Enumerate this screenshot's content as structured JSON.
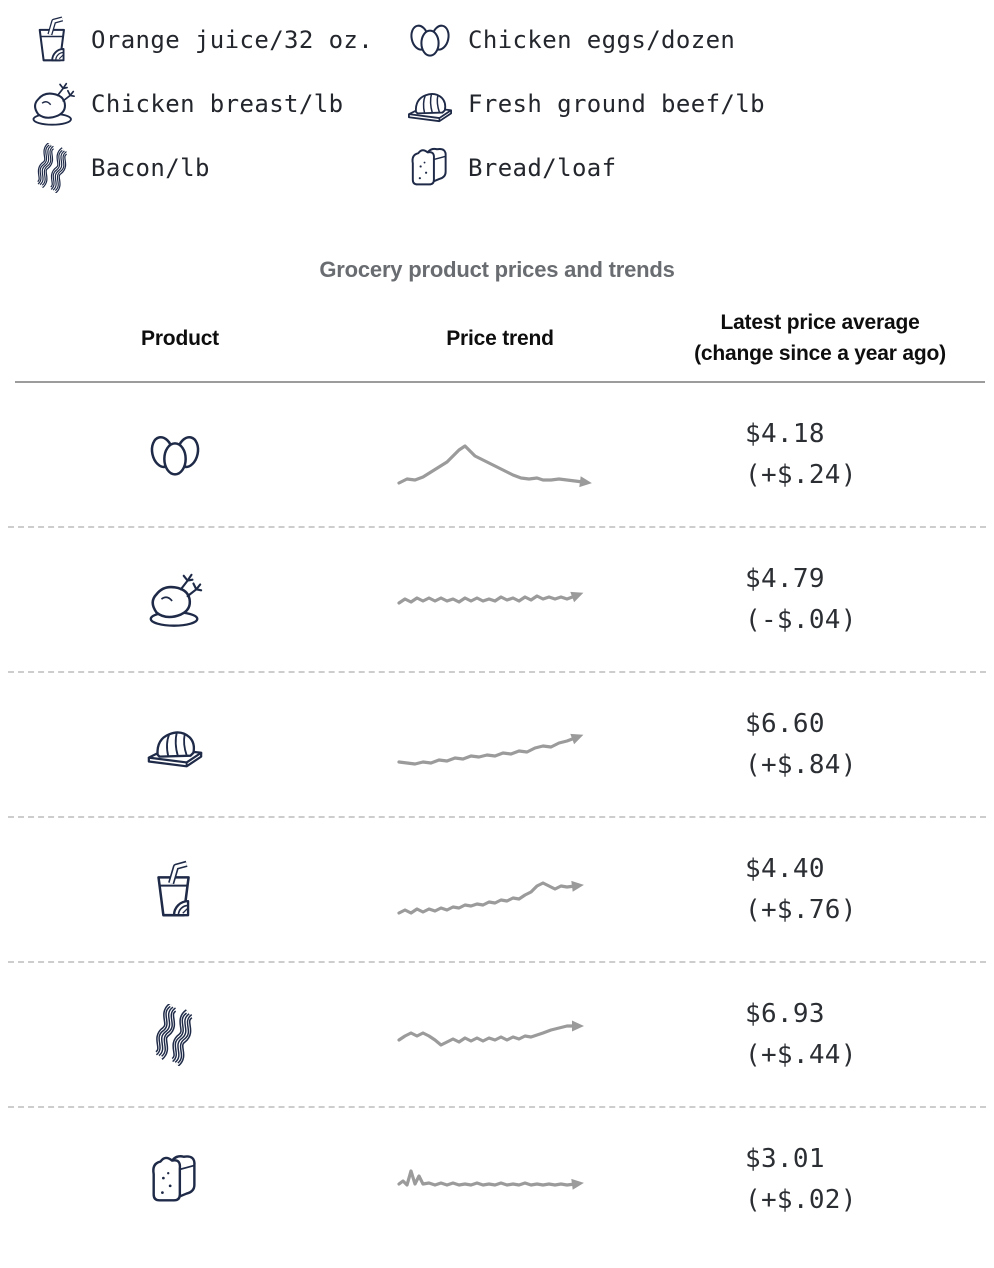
{
  "colors": {
    "icon_ink": "#1e2a47",
    "legend_text": "#23262c",
    "price_text": "#2b2e33",
    "title_gray": "#696c70",
    "header_black": "#0e0e0e",
    "trend": "#9b9b9b",
    "solid_rule": "#9c9c9c",
    "dashed_rule": "#cdcdcd",
    "background": "#ffffff"
  },
  "legend": {
    "items": [
      {
        "icon": "juice-icon",
        "label": "Orange juice/32 oz."
      },
      {
        "icon": "eggs-icon",
        "label": "Chicken eggs/dozen"
      },
      {
        "icon": "chicken-icon",
        "label": "Chicken breast/lb"
      },
      {
        "icon": "beef-icon",
        "label": "Fresh ground beef/lb"
      },
      {
        "icon": "bacon-icon",
        "label": "Bacon/lb"
      },
      {
        "icon": "bread-icon",
        "label": "Bread/loaf"
      }
    ]
  },
  "table": {
    "title": "Grocery product prices and trends",
    "columns": [
      {
        "label": "Product"
      },
      {
        "label": "Price trend"
      },
      {
        "label_line1": "Latest price average",
        "label_line2": "(change since a year ago)"
      }
    ],
    "rows": [
      {
        "product": "Chicken eggs/dozen",
        "icon": "eggs-icon",
        "price": "$4.18",
        "change": "(+$.24)",
        "trend_points": [
          [
            4,
            63
          ],
          [
            12,
            59
          ],
          [
            20,
            60
          ],
          [
            28,
            57
          ],
          [
            36,
            52
          ],
          [
            44,
            47
          ],
          [
            52,
            42
          ],
          [
            58,
            36
          ],
          [
            64,
            30
          ],
          [
            70,
            26
          ],
          [
            74,
            30
          ],
          [
            80,
            36
          ],
          [
            86,
            39
          ],
          [
            94,
            43
          ],
          [
            102,
            47
          ],
          [
            110,
            51
          ],
          [
            118,
            55
          ],
          [
            126,
            58
          ],
          [
            134,
            59
          ],
          [
            142,
            58
          ],
          [
            148,
            60
          ],
          [
            156,
            60
          ],
          [
            164,
            59
          ],
          [
            172,
            60
          ],
          [
            180,
            61
          ],
          [
            188,
            62
          ]
        ]
      },
      {
        "product": "Chicken breast/lb",
        "icon": "chicken-icon",
        "price": "$4.79",
        "change": "(-$.04)",
        "trend_points": [
          [
            4,
            38
          ],
          [
            10,
            34
          ],
          [
            16,
            37
          ],
          [
            22,
            33
          ],
          [
            28,
            36
          ],
          [
            34,
            33
          ],
          [
            40,
            36
          ],
          [
            46,
            33
          ],
          [
            52,
            36
          ],
          [
            58,
            34
          ],
          [
            64,
            37
          ],
          [
            70,
            33
          ],
          [
            76,
            36
          ],
          [
            82,
            33
          ],
          [
            88,
            36
          ],
          [
            94,
            34
          ],
          [
            100,
            36
          ],
          [
            106,
            32
          ],
          [
            112,
            35
          ],
          [
            118,
            33
          ],
          [
            124,
            36
          ],
          [
            130,
            32
          ],
          [
            136,
            35
          ],
          [
            142,
            31
          ],
          [
            148,
            34
          ],
          [
            154,
            32
          ],
          [
            160,
            34
          ],
          [
            166,
            32
          ],
          [
            172,
            34
          ],
          [
            180,
            31
          ]
        ]
      },
      {
        "product": "Fresh ground beef/lb",
        "icon": "beef-icon",
        "price": "$6.60",
        "change": "(+$.84)",
        "trend_points": [
          [
            4,
            52
          ],
          [
            12,
            53
          ],
          [
            20,
            54
          ],
          [
            28,
            52
          ],
          [
            36,
            53
          ],
          [
            44,
            50
          ],
          [
            52,
            51
          ],
          [
            60,
            48
          ],
          [
            68,
            49
          ],
          [
            76,
            46
          ],
          [
            84,
            47
          ],
          [
            92,
            45
          ],
          [
            100,
            46
          ],
          [
            108,
            43
          ],
          [
            116,
            44
          ],
          [
            124,
            41
          ],
          [
            132,
            42
          ],
          [
            140,
            38
          ],
          [
            148,
            36
          ],
          [
            156,
            37
          ],
          [
            164,
            33
          ],
          [
            172,
            31
          ],
          [
            180,
            28
          ]
        ]
      },
      {
        "product": "Orange juice/32 oz.",
        "icon": "juice-icon",
        "price": "$4.40",
        "change": "(+$.76)",
        "trend_points": [
          [
            4,
            58
          ],
          [
            10,
            55
          ],
          [
            16,
            58
          ],
          [
            22,
            54
          ],
          [
            28,
            57
          ],
          [
            34,
            54
          ],
          [
            40,
            56
          ],
          [
            46,
            53
          ],
          [
            52,
            55
          ],
          [
            58,
            52
          ],
          [
            64,
            53
          ],
          [
            70,
            50
          ],
          [
            76,
            51
          ],
          [
            82,
            49
          ],
          [
            88,
            50
          ],
          [
            94,
            47
          ],
          [
            100,
            48
          ],
          [
            106,
            45
          ],
          [
            112,
            46
          ],
          [
            118,
            43
          ],
          [
            124,
            44
          ],
          [
            130,
            40
          ],
          [
            136,
            37
          ],
          [
            142,
            31
          ],
          [
            148,
            28
          ],
          [
            154,
            31
          ],
          [
            160,
            34
          ],
          [
            166,
            31
          ],
          [
            172,
            32
          ],
          [
            180,
            31
          ]
        ]
      },
      {
        "product": "Bacon/lb",
        "icon": "bacon-icon",
        "price": "$6.93",
        "change": "(+$.44)",
        "trend_points": [
          [
            4,
            40
          ],
          [
            10,
            36
          ],
          [
            16,
            33
          ],
          [
            22,
            36
          ],
          [
            28,
            33
          ],
          [
            34,
            36
          ],
          [
            40,
            40
          ],
          [
            46,
            45
          ],
          [
            52,
            42
          ],
          [
            58,
            39
          ],
          [
            64,
            42
          ],
          [
            70,
            38
          ],
          [
            76,
            41
          ],
          [
            82,
            38
          ],
          [
            88,
            41
          ],
          [
            94,
            38
          ],
          [
            100,
            40
          ],
          [
            106,
            37
          ],
          [
            112,
            40
          ],
          [
            118,
            37
          ],
          [
            124,
            39
          ],
          [
            130,
            36
          ],
          [
            136,
            37
          ],
          [
            142,
            35
          ],
          [
            148,
            33
          ],
          [
            156,
            30
          ],
          [
            164,
            28
          ],
          [
            172,
            26
          ],
          [
            180,
            26
          ]
        ]
      },
      {
        "product": "Bread/loaf",
        "icon": "bread-icon",
        "price": "$3.01",
        "change": "(+$.02)",
        "trend_points": [
          [
            4,
            39
          ],
          [
            8,
            36
          ],
          [
            12,
            40
          ],
          [
            16,
            26
          ],
          [
            20,
            39
          ],
          [
            24,
            31
          ],
          [
            28,
            39
          ],
          [
            34,
            38
          ],
          [
            40,
            40
          ],
          [
            46,
            38
          ],
          [
            52,
            40
          ],
          [
            58,
            38
          ],
          [
            64,
            40
          ],
          [
            70,
            39
          ],
          [
            76,
            40
          ],
          [
            82,
            38
          ],
          [
            88,
            40
          ],
          [
            94,
            39
          ],
          [
            100,
            40
          ],
          [
            106,
            38
          ],
          [
            112,
            40
          ],
          [
            118,
            39
          ],
          [
            124,
            40
          ],
          [
            130,
            38
          ],
          [
            136,
            40
          ],
          [
            142,
            39
          ],
          [
            148,
            40
          ],
          [
            154,
            39
          ],
          [
            160,
            40
          ],
          [
            166,
            39
          ],
          [
            172,
            40
          ],
          [
            180,
            39
          ]
        ]
      }
    ]
  },
  "chart_data": {
    "type": "table",
    "title": "Grocery product prices and trends",
    "columns": [
      "Product",
      "Price trend",
      "Latest price average (change since a year ago)"
    ],
    "legend_position": "top",
    "axes": false,
    "rows": [
      {
        "product": "Chicken eggs/dozen",
        "latest_price_usd": 4.18,
        "change_since_year_ago_usd": 0.24,
        "trend_shape": "rises to a sharp peak about 40% through, then declines and flattens"
      },
      {
        "product": "Chicken breast/lb",
        "latest_price_usd": 4.79,
        "change_since_year_ago_usd": -0.04,
        "trend_shape": "flat with small jitter"
      },
      {
        "product": "Fresh ground beef/lb",
        "latest_price_usd": 6.6,
        "change_since_year_ago_usd": 0.84,
        "trend_shape": "steady gradual rise"
      },
      {
        "product": "Orange juice/32 oz.",
        "latest_price_usd": 4.4,
        "change_since_year_ago_usd": 0.76,
        "trend_shape": "gradual rise with a step up near the end"
      },
      {
        "product": "Bacon/lb",
        "latest_price_usd": 6.93,
        "change_since_year_ago_usd": 0.44,
        "trend_shape": "wavy, dips mid-series then rises at the end"
      },
      {
        "product": "Bread/loaf",
        "latest_price_usd": 3.01,
        "change_since_year_ago_usd": 0.02,
        "trend_shape": "flat with a small early spike"
      }
    ]
  }
}
